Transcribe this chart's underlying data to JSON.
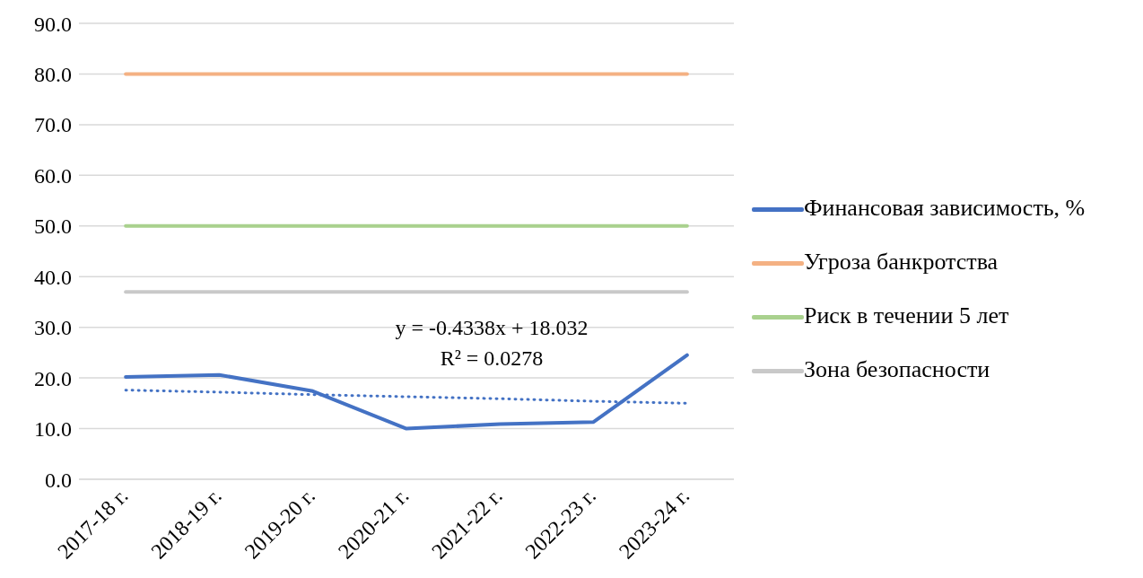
{
  "chart_data": {
    "type": "line",
    "categories": [
      "2017-18 г.",
      "2018-19 г.",
      "2019-20 г.",
      "2020-21 г.",
      "2021-22 г.",
      "2022-23 г.",
      "2023-24 г."
    ],
    "series": [
      {
        "name": "Финансовая зависимость, %",
        "color": "#4472c4",
        "values": [
          20.2,
          20.6,
          17.4,
          10.0,
          10.9,
          11.3,
          24.5
        ]
      },
      {
        "name": "Угроза банкротства",
        "color": "#f4b183",
        "values": [
          80,
          80,
          80,
          80,
          80,
          80,
          80
        ]
      },
      {
        "name": "Риск в течении 5 лет",
        "color": "#a9d18e",
        "values": [
          50,
          50,
          50,
          50,
          50,
          50,
          50
        ]
      },
      {
        "name": "Зона безопасности",
        "color": "#c9c9c9",
        "values": [
          37,
          37,
          37,
          37,
          37,
          37,
          37
        ]
      },
      {
        "type": "line",
        "line_style": "dotted",
        "color": "#4472c4",
        "values": [
          17.6,
          17.2,
          16.7,
          16.3,
          15.9,
          15.4,
          15.0
        ]
      }
    ],
    "ylim": [
      0,
      90
    ],
    "yticks": [
      {
        "value": 0,
        "label": "0.0"
      },
      {
        "value": 10,
        "label": "10.0"
      },
      {
        "value": 20,
        "label": "20.0"
      },
      {
        "value": 30,
        "label": "30.0"
      },
      {
        "value": 40,
        "label": "40.0"
      },
      {
        "value": 50,
        "label": "50.0"
      },
      {
        "value": 60,
        "label": "60.0"
      },
      {
        "value": 70,
        "label": "70.0"
      },
      {
        "value": 80,
        "label": "80.0"
      },
      {
        "value": 90,
        "label": "90.0"
      }
    ],
    "grid": "y",
    "legend": "right",
    "marker": "none",
    "line_style": "solid",
    "annotations": [
      "y = -0.4338x + 18.032",
      "R² = 0.0278"
    ]
  }
}
